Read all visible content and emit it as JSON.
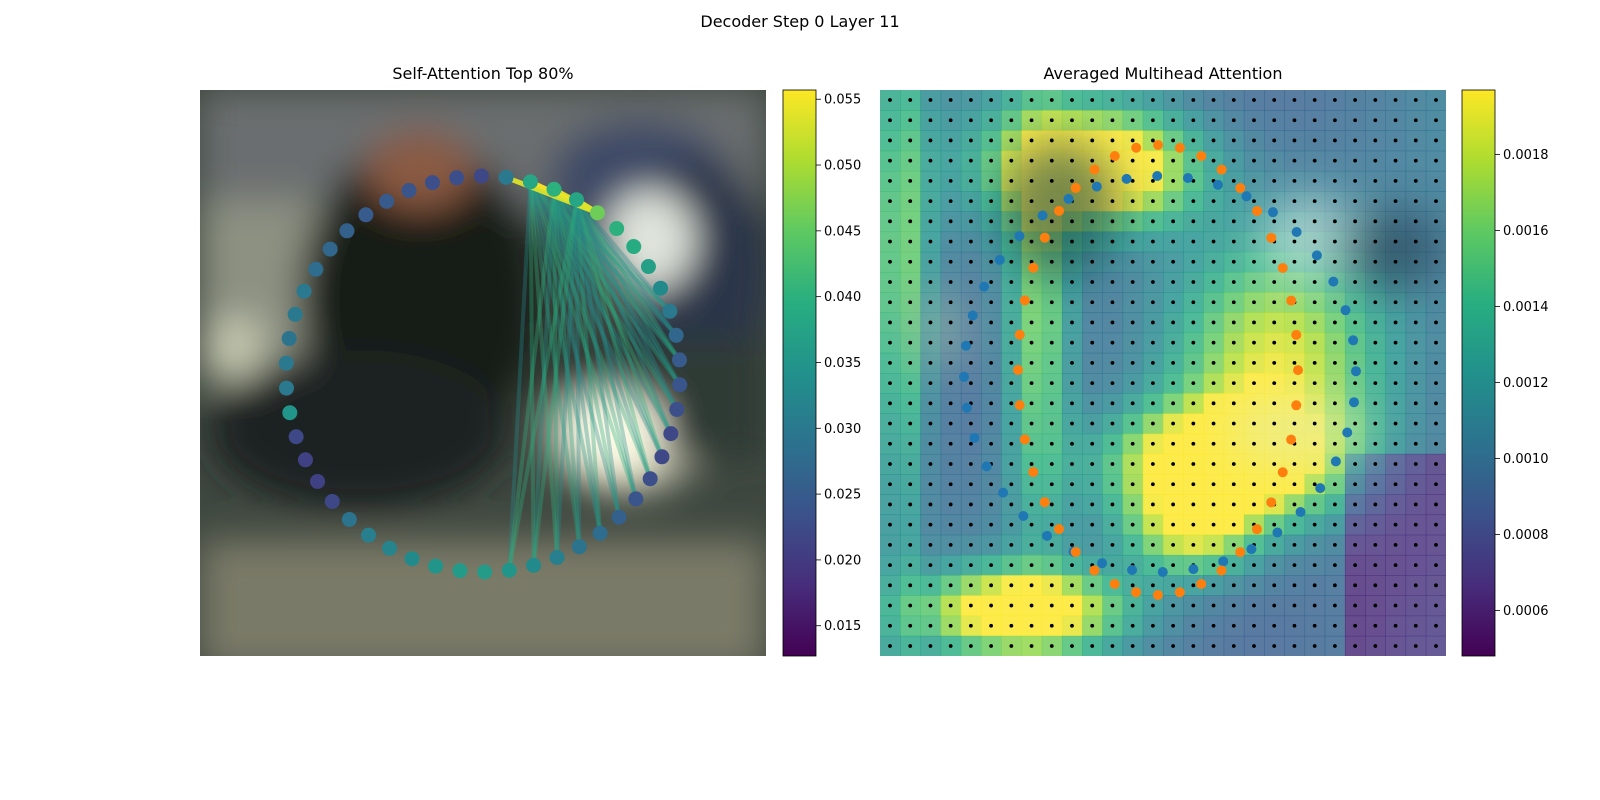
{
  "figure": {
    "title": "Decoder Step 0 Layer 11"
  },
  "chart_data": [
    {
      "type": "scatter",
      "title": "Self-Attention Top 80%",
      "colormap": "viridis",
      "colorbar": {
        "range": [
          0.0127,
          0.0557
        ],
        "ticks": [
          "0.015",
          "0.020",
          "0.025",
          "0.030",
          "0.035",
          "0.040",
          "0.045",
          "0.050",
          "0.055"
        ]
      },
      "points": {
        "count": 50,
        "values": [
          0.046,
          0.04,
          0.039,
          0.037,
          0.033,
          0.03,
          0.027,
          0.025,
          0.024,
          0.023,
          0.022,
          0.022,
          0.023,
          0.024,
          0.026,
          0.028,
          0.029,
          0.031,
          0.033,
          0.035,
          0.036,
          0.036,
          0.035,
          0.033,
          0.032,
          0.031,
          0.029,
          0.022,
          0.021,
          0.021,
          0.022,
          0.035,
          0.03,
          0.03,
          0.029,
          0.03,
          0.03,
          0.028,
          0.027,
          0.026,
          0.025,
          0.025,
          0.024,
          0.023,
          0.023,
          0.022,
          0.03,
          0.038,
          0.04,
          0.038
        ]
      },
      "top_edges": [
        {
          "from": 47,
          "to": 0,
          "weight": 0.0557
        },
        {
          "from": 48,
          "to": 0,
          "weight": 0.0545
        },
        {
          "from": 49,
          "to": 0,
          "weight": 0.054
        },
        {
          "from": 46,
          "to": 0,
          "weight": 0.0535
        }
      ]
    },
    {
      "type": "heatmap",
      "title": "Averaged Multihead Attention",
      "colormap": "viridis",
      "grid": [
        28,
        28
      ],
      "colorbar": {
        "range": [
          0.00048,
          0.00197
        ],
        "ticks": [
          "0.0006",
          "0.0008",
          "0.0010",
          "0.0012",
          "0.0014",
          "0.0016",
          "0.0018"
        ]
      },
      "series": [
        {
          "color": "#1f77b4",
          "count": 40
        },
        {
          "color": "#ff7f0e",
          "count": 40
        }
      ]
    }
  ]
}
